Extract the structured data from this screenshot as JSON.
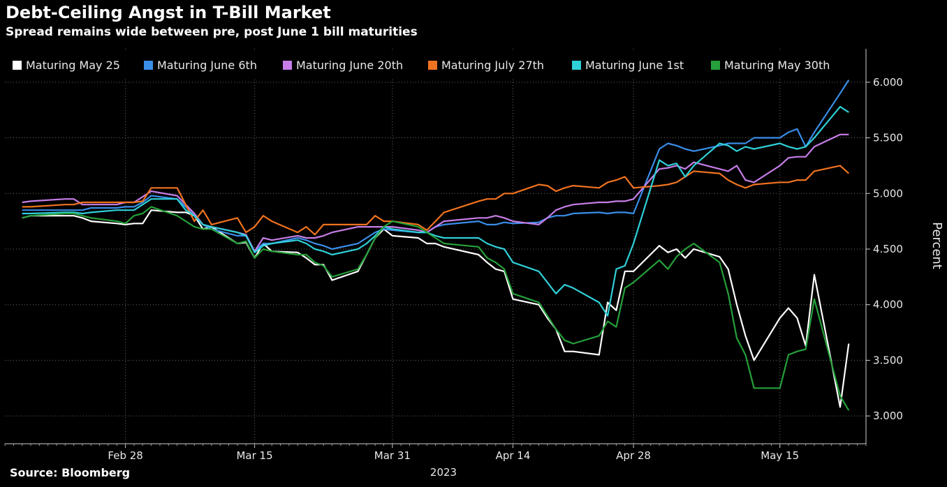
{
  "header": {
    "title": "Debt-Ceiling Angst in T-Bill Market",
    "subtitle": "Spread remains wide between pre, post June 1 bill maturities"
  },
  "footer": {
    "source": "Source: Bloomberg"
  },
  "chart_data": {
    "type": "line",
    "ylabel": "Percent",
    "ylim": [
      2.75,
      6.3
    ],
    "y_ticks": [
      3.0,
      3.5,
      4.0,
      4.5,
      5.0,
      5.5,
      6.0
    ],
    "y_tick_labels": [
      "3.000",
      "3.500",
      "4.000",
      "4.500",
      "5.000",
      "5.500",
      "6.000"
    ],
    "x_tick_labels": [
      "Feb 28",
      "Mar 15",
      "Mar 31",
      "Apr 14",
      "Apr 28",
      "May 15"
    ],
    "x_year_label": "2023",
    "grid": true,
    "legend_position": "top-left",
    "x": [
      "2023-02-16",
      "2023-02-17",
      "2023-02-21",
      "2023-02-22",
      "2023-02-23",
      "2023-02-24",
      "2023-02-27",
      "2023-02-28",
      "2023-03-01",
      "2023-03-02",
      "2023-03-03",
      "2023-03-06",
      "2023-03-07",
      "2023-03-08",
      "2023-03-09",
      "2023-03-10",
      "2023-03-13",
      "2023-03-14",
      "2023-03-15",
      "2023-03-16",
      "2023-03-17",
      "2023-03-20",
      "2023-03-21",
      "2023-03-22",
      "2023-03-23",
      "2023-03-24",
      "2023-03-27",
      "2023-03-28",
      "2023-03-29",
      "2023-03-30",
      "2023-03-31",
      "2023-04-03",
      "2023-04-04",
      "2023-04-05",
      "2023-04-06",
      "2023-04-10",
      "2023-04-11",
      "2023-04-12",
      "2023-04-13",
      "2023-04-14",
      "2023-04-17",
      "2023-04-18",
      "2023-04-19",
      "2023-04-20",
      "2023-04-21",
      "2023-04-24",
      "2023-04-25",
      "2023-04-26",
      "2023-04-27",
      "2023-04-28",
      "2023-05-01",
      "2023-05-02",
      "2023-05-03",
      "2023-05-04",
      "2023-05-05",
      "2023-05-08",
      "2023-05-09",
      "2023-05-10",
      "2023-05-11",
      "2023-05-12",
      "2023-05-15",
      "2023-05-16",
      "2023-05-17",
      "2023-05-18",
      "2023-05-19",
      "2023-05-22",
      "2023-05-23"
    ],
    "series": [
      {
        "name": "Maturing May 25",
        "color": "#ffffff",
        "values": [
          4.78,
          4.8,
          4.8,
          4.8,
          4.78,
          4.75,
          4.73,
          4.72,
          4.73,
          4.73,
          4.85,
          4.83,
          4.83,
          4.8,
          4.68,
          4.7,
          4.55,
          4.56,
          4.42,
          4.55,
          4.48,
          4.47,
          4.42,
          4.36,
          4.36,
          4.22,
          4.3,
          4.45,
          4.6,
          4.68,
          4.62,
          4.6,
          4.55,
          4.55,
          4.52,
          4.45,
          4.38,
          4.32,
          4.3,
          4.05,
          4.0,
          3.88,
          3.78,
          3.58,
          3.58,
          3.55,
          4.02,
          3.95,
          4.3,
          4.3,
          4.53,
          4.47,
          4.5,
          4.42,
          4.5,
          4.43,
          4.32,
          4.0,
          3.72,
          3.5,
          3.88,
          3.97,
          3.88,
          3.63,
          4.27,
          3.08,
          3.65
        ]
      },
      {
        "name": "Maturing June 6th",
        "color": "#3a8ee8",
        "values": [
          4.85,
          4.85,
          4.85,
          4.85,
          4.85,
          4.87,
          4.87,
          4.88,
          4.88,
          4.92,
          4.98,
          4.95,
          4.88,
          4.8,
          4.72,
          4.68,
          4.62,
          4.62,
          4.48,
          4.55,
          4.55,
          4.6,
          4.58,
          4.55,
          4.53,
          4.5,
          4.55,
          4.6,
          4.65,
          4.68,
          4.67,
          4.65,
          4.65,
          4.7,
          4.72,
          4.75,
          4.72,
          4.72,
          4.74,
          4.73,
          4.74,
          4.78,
          4.8,
          4.8,
          4.82,
          4.83,
          4.82,
          4.83,
          4.83,
          4.82,
          5.4,
          5.45,
          5.43,
          5.4,
          5.38,
          5.43,
          5.45,
          5.45,
          5.45,
          5.5,
          5.5,
          5.55,
          5.58,
          5.42,
          5.55,
          5.9,
          6.02
        ]
      },
      {
        "name": "Maturing June 20th",
        "color": "#c77ee8",
        "values": [
          4.92,
          4.93,
          4.95,
          4.95,
          4.9,
          4.9,
          4.9,
          4.92,
          4.92,
          4.97,
          5.02,
          4.98,
          4.9,
          4.82,
          4.72,
          4.7,
          4.65,
          4.63,
          4.48,
          4.6,
          4.58,
          4.62,
          4.6,
          4.6,
          4.62,
          4.65,
          4.7,
          4.7,
          4.7,
          4.7,
          4.7,
          4.67,
          4.65,
          4.7,
          4.75,
          4.78,
          4.78,
          4.8,
          4.78,
          4.75,
          4.72,
          4.78,
          4.85,
          4.88,
          4.9,
          4.92,
          4.92,
          4.93,
          4.93,
          4.95,
          5.22,
          5.23,
          5.25,
          5.22,
          5.28,
          5.22,
          5.2,
          5.25,
          5.12,
          5.1,
          5.25,
          5.32,
          5.33,
          5.33,
          5.42,
          5.53,
          5.53
        ]
      },
      {
        "name": "Maturing July 27th",
        "color": "#f0731f",
        "values": [
          4.88,
          4.88,
          4.9,
          4.9,
          4.92,
          4.92,
          4.92,
          4.92,
          4.92,
          4.93,
          5.05,
          5.05,
          4.9,
          4.75,
          4.85,
          4.72,
          4.78,
          4.65,
          4.7,
          4.8,
          4.75,
          4.65,
          4.7,
          4.63,
          4.72,
          4.72,
          4.72,
          4.72,
          4.8,
          4.75,
          4.75,
          4.72,
          4.67,
          4.75,
          4.83,
          4.93,
          4.95,
          4.95,
          5.0,
          5.0,
          5.08,
          5.07,
          5.02,
          5.05,
          5.07,
          5.05,
          5.1,
          5.12,
          5.15,
          5.05,
          5.07,
          5.08,
          5.1,
          5.15,
          5.2,
          5.18,
          5.12,
          5.08,
          5.05,
          5.08,
          5.1,
          5.1,
          5.12,
          5.12,
          5.2,
          5.25,
          5.18
        ]
      },
      {
        "name": "Maturing June 1st",
        "color": "#2fd0d8",
        "values": [
          4.82,
          4.82,
          4.83,
          4.83,
          4.82,
          4.83,
          4.85,
          4.85,
          4.85,
          4.9,
          4.95,
          4.95,
          4.85,
          4.8,
          4.72,
          4.7,
          4.65,
          4.62,
          4.47,
          4.53,
          4.55,
          4.58,
          4.55,
          4.5,
          4.48,
          4.45,
          4.5,
          4.55,
          4.62,
          4.7,
          4.68,
          4.65,
          4.65,
          4.62,
          4.6,
          4.6,
          4.55,
          4.52,
          4.5,
          4.38,
          4.3,
          4.2,
          4.1,
          4.18,
          4.15,
          4.02,
          3.9,
          4.32,
          4.35,
          4.55,
          5.3,
          5.25,
          5.27,
          5.15,
          5.25,
          5.45,
          5.43,
          5.38,
          5.42,
          5.4,
          5.45,
          5.42,
          5.4,
          5.42,
          5.5,
          5.78,
          5.73
        ]
      },
      {
        "name": "Maturing May 30th",
        "color": "#25a03a",
        "values": [
          4.78,
          4.8,
          4.82,
          4.82,
          4.8,
          4.78,
          4.75,
          4.73,
          4.8,
          4.82,
          4.88,
          4.8,
          4.75,
          4.7,
          4.68,
          4.68,
          4.55,
          4.57,
          4.42,
          4.5,
          4.48,
          4.45,
          4.45,
          4.38,
          4.35,
          4.25,
          4.32,
          4.45,
          4.6,
          4.7,
          4.75,
          4.7,
          4.65,
          4.6,
          4.55,
          4.52,
          4.42,
          4.38,
          4.32,
          4.1,
          4.02,
          3.9,
          3.78,
          3.68,
          3.65,
          3.72,
          3.85,
          3.8,
          4.15,
          4.2,
          4.4,
          4.32,
          4.43,
          4.5,
          4.55,
          4.38,
          4.1,
          3.7,
          3.55,
          3.25,
          3.25,
          3.55,
          3.58,
          3.6,
          4.05,
          3.18,
          3.05
        ]
      }
    ]
  }
}
